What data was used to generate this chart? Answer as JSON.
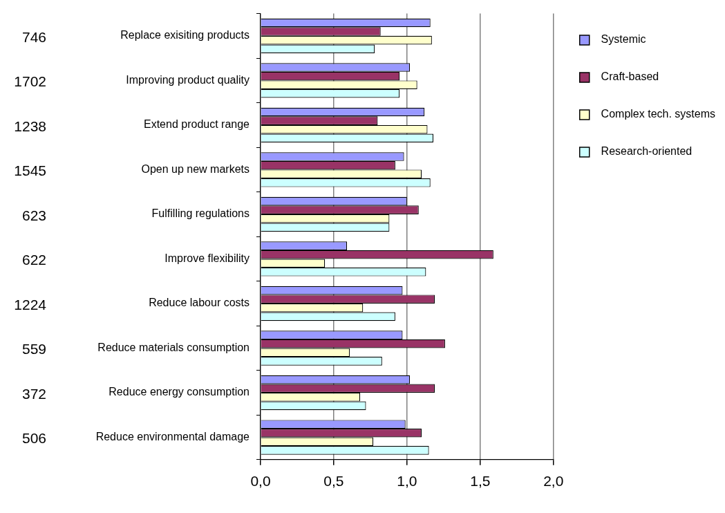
{
  "chart_data": {
    "type": "bar",
    "orientation": "horizontal",
    "categories": [
      "Replace exisiting products",
      "Improving product quality",
      "Extend product range",
      "Open up new markets",
      "Fulfilling regulations",
      "Improve flexibility",
      "Reduce labour costs",
      "Reduce materials consumption",
      "Reduce energy consumption",
      "Reduce environmental damage"
    ],
    "series": [
      {
        "name": "Systemic",
        "color": "#9999ff",
        "values": [
          1.16,
          1.02,
          1.12,
          0.98,
          1.0,
          0.59,
          0.97,
          0.97,
          1.02,
          0.99
        ]
      },
      {
        "name": "Craft-based",
        "color": "#993366",
        "values": [
          0.82,
          0.95,
          0.8,
          0.92,
          1.08,
          1.59,
          1.19,
          1.26,
          1.19,
          1.1
        ]
      },
      {
        "name": "Complex tech. systems",
        "color": "#ffffcc",
        "values": [
          1.17,
          1.07,
          1.14,
          1.1,
          0.88,
          0.44,
          0.7,
          0.61,
          0.68,
          0.77
        ]
      },
      {
        "name": "Research-oriented",
        "color": "#ccffff",
        "values": [
          0.78,
          0.95,
          1.18,
          1.16,
          0.88,
          1.13,
          0.92,
          0.83,
          0.72,
          1.15
        ]
      }
    ],
    "xlim": [
      0,
      2
    ],
    "xticks": [
      {
        "value": 0,
        "label": "0,0"
      },
      {
        "value": 0.5,
        "label": "0,5"
      },
      {
        "value": 1,
        "label": "1,0"
      },
      {
        "value": 1.5,
        "label": "1,5"
      },
      {
        "value": 2,
        "label": "2,0"
      }
    ],
    "grid": "x",
    "legend": "top right",
    "annotations": [
      "746",
      "1702",
      "1238",
      "1545",
      "623",
      "622",
      "1224",
      "559",
      "372",
      "506"
    ]
  }
}
